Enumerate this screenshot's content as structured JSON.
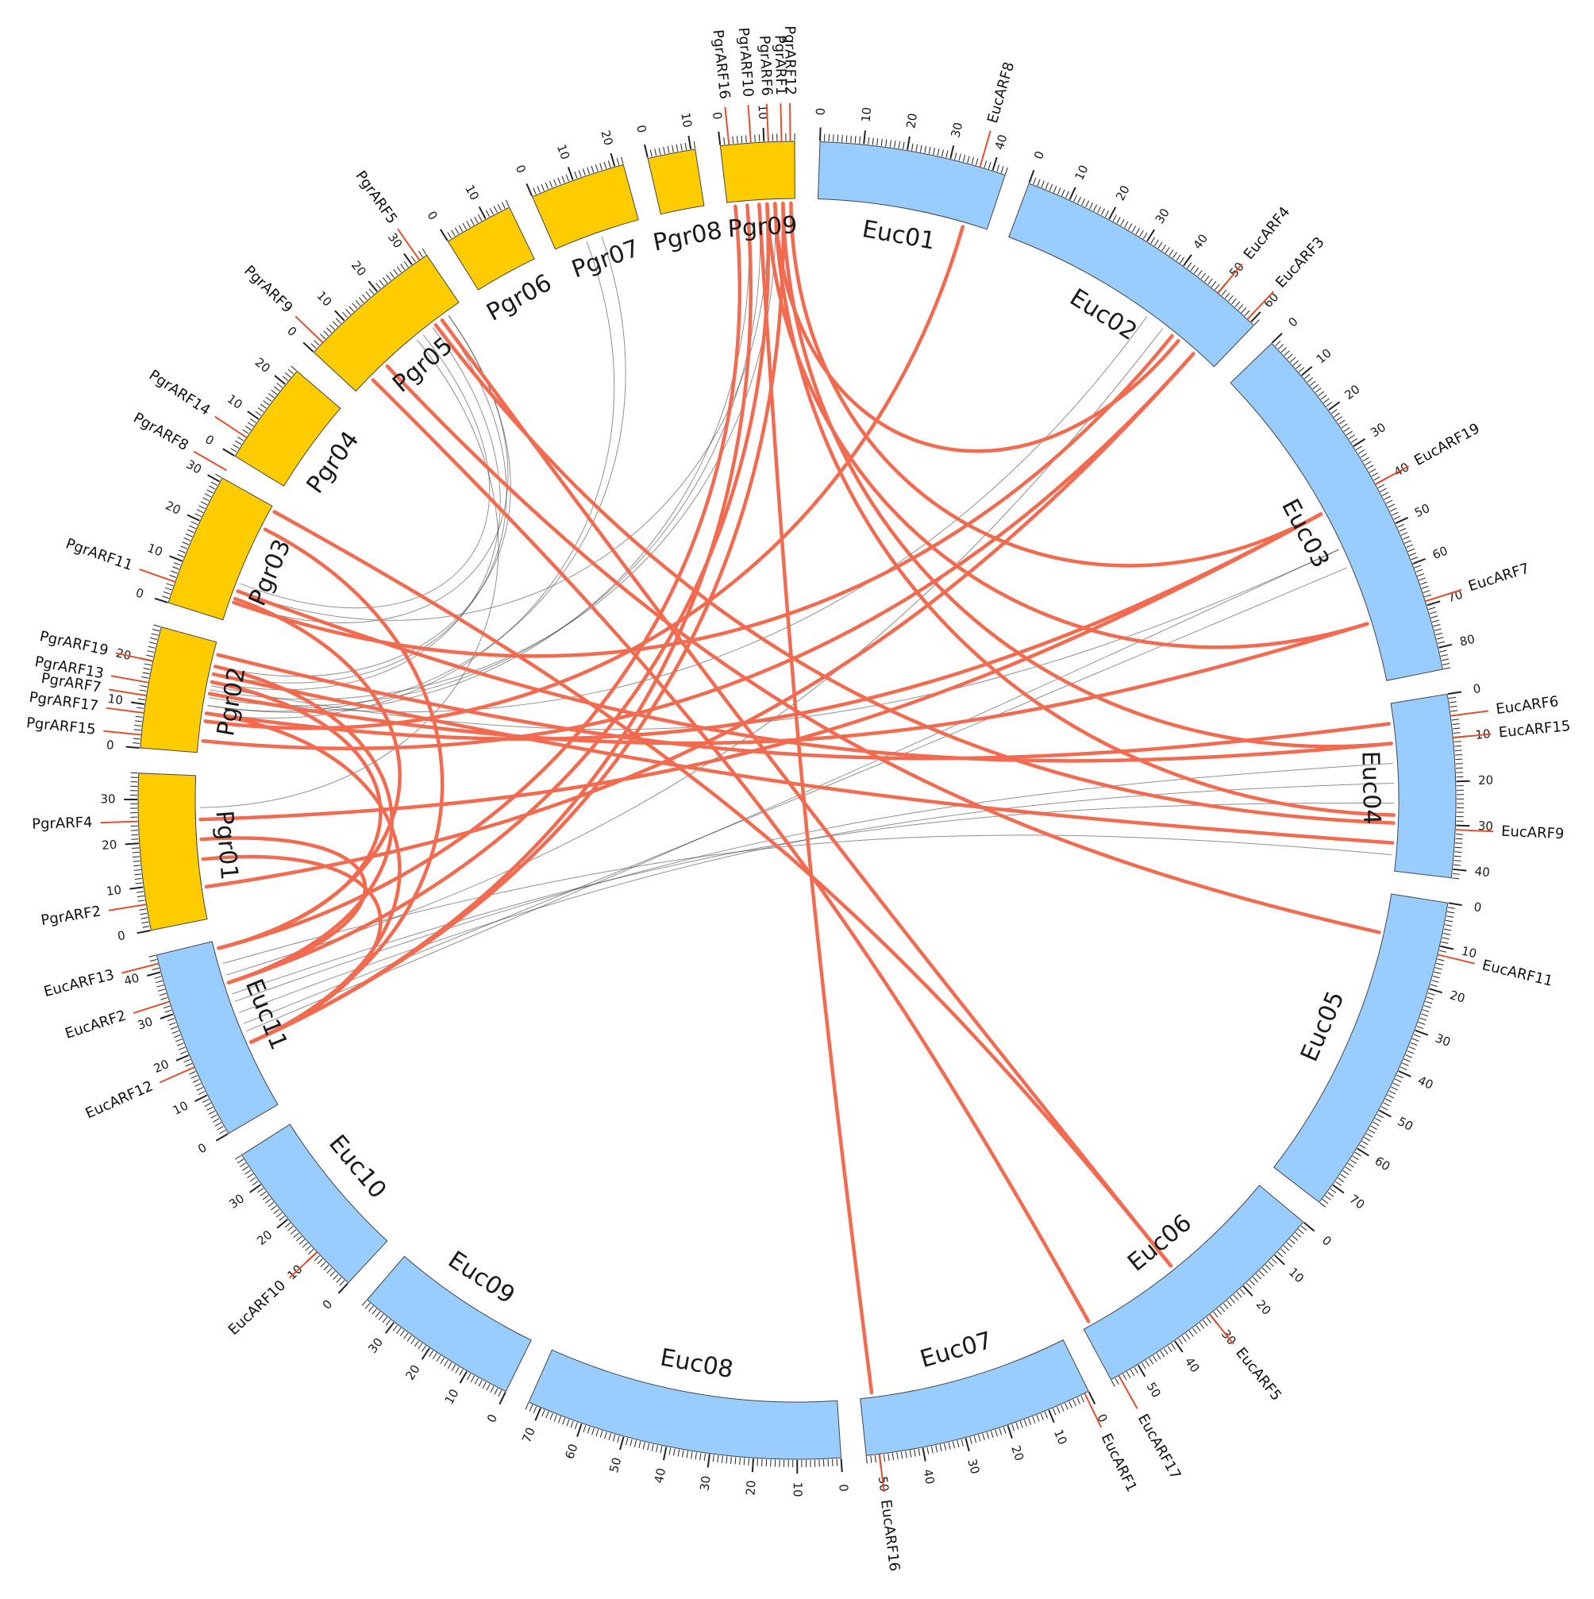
{
  "colors": {
    "euc_fill": "#99ccff",
    "pgr_fill": "#ffcc00",
    "chrom_stroke": "#444444",
    "arf_link": "#f26a4f",
    "arf_marker": "#e0502e",
    "background_link": "#333333"
  },
  "chromosomes": [
    {
      "id": "Euc01",
      "label": "Euc01",
      "species": "euc",
      "length": 43,
      "tick_step": 10
    },
    {
      "id": "Euc02",
      "label": "Euc02",
      "species": "euc",
      "length": 61,
      "tick_step": 10
    },
    {
      "id": "Euc03",
      "label": "Euc03",
      "species": "euc",
      "length": 85,
      "tick_step": 10
    },
    {
      "id": "Euc04",
      "label": "Euc04",
      "species": "euc",
      "length": 42,
      "tick_step": 10
    },
    {
      "id": "Euc05",
      "label": "Euc05",
      "species": "euc",
      "length": 75,
      "tick_step": 10
    },
    {
      "id": "Euc06",
      "label": "Euc06",
      "species": "euc",
      "length": 57,
      "tick_step": 10
    },
    {
      "id": "Euc07",
      "label": "Euc07",
      "species": "euc",
      "length": 53,
      "tick_step": 10
    },
    {
      "id": "Euc08",
      "label": "Euc08",
      "species": "euc",
      "length": 73,
      "tick_step": 10
    },
    {
      "id": "Euc09",
      "label": "Euc09",
      "species": "euc",
      "length": 38,
      "tick_step": 10
    },
    {
      "id": "Euc10",
      "label": "Euc10",
      "species": "euc",
      "length": 38,
      "tick_step": 10
    },
    {
      "id": "Euc11",
      "label": "Euc11",
      "species": "euc",
      "length": 44,
      "tick_step": 10
    },
    {
      "id": "Pgr01",
      "label": "Pgr01",
      "species": "pgr",
      "length": 36,
      "tick_step": 10
    },
    {
      "id": "Pgr02",
      "label": "Pgr02",
      "species": "pgr",
      "length": 28,
      "tick_step": 10
    },
    {
      "id": "Pgr03",
      "label": "Pgr03",
      "species": "pgr",
      "length": 31,
      "tick_step": 10
    },
    {
      "id": "Pgr04",
      "label": "Pgr04",
      "species": "pgr",
      "length": 24,
      "tick_step": 10
    },
    {
      "id": "Pgr05",
      "label": "Pgr05",
      "species": "pgr",
      "length": 34,
      "tick_step": 10
    },
    {
      "id": "Pgr06",
      "label": "Pgr06",
      "species": "pgr",
      "length": 16,
      "tick_step": 10
    },
    {
      "id": "Pgr07",
      "label": "Pgr07",
      "species": "pgr",
      "length": 22,
      "tick_step": 10
    },
    {
      "id": "Pgr08",
      "label": "Pgr08",
      "species": "pgr",
      "length": 11,
      "tick_step": 10
    },
    {
      "id": "Pgr09",
      "label": "Pgr09",
      "species": "pgr",
      "length": 17,
      "tick_step": 10
    }
  ],
  "genes": [
    {
      "name": "EucARF1",
      "chr": "Euc07",
      "pos": 1
    },
    {
      "name": "EucARF2",
      "chr": "Euc11",
      "pos": 33
    },
    {
      "name": "EucARF3",
      "chr": "Euc02",
      "pos": 59
    },
    {
      "name": "EucARF4",
      "chr": "Euc02",
      "pos": 50
    },
    {
      "name": "EucARF5",
      "chr": "Euc06",
      "pos": 30
    },
    {
      "name": "EucARF6",
      "chr": "Euc04",
      "pos": 5
    },
    {
      "name": "EucARF7",
      "chr": "Euc03",
      "pos": 69
    },
    {
      "name": "EucARF8",
      "chr": "Euc01",
      "pos": 37
    },
    {
      "name": "EucARF9",
      "chr": "Euc04",
      "pos": 31
    },
    {
      "name": "EucARF10",
      "chr": "Euc10",
      "pos": 10
    },
    {
      "name": "EucARF11",
      "chr": "Euc05",
      "pos": 12
    },
    {
      "name": "EucARF12",
      "chr": "Euc11",
      "pos": 17
    },
    {
      "name": "EucARF13",
      "chr": "Euc11",
      "pos": 42
    },
    {
      "name": "EucARF15",
      "chr": "Euc04",
      "pos": 10
    },
    {
      "name": "EucARF16",
      "chr": "Euc07",
      "pos": 50
    },
    {
      "name": "EucARF17",
      "chr": "Euc06",
      "pos": 55
    },
    {
      "name": "EucARF19",
      "chr": "Euc03",
      "pos": 40
    },
    {
      "name": "PgrARF1",
      "chr": "Pgr09",
      "pos": 14
    },
    {
      "name": "PgrARF2",
      "chr": "Pgr01",
      "pos": 6
    },
    {
      "name": "PgrARF4",
      "chr": "Pgr01",
      "pos": 25
    },
    {
      "name": "PgrARF5",
      "chr": "Pgr05",
      "pos": 32
    },
    {
      "name": "PgrARF6",
      "chr": "Pgr09",
      "pos": 11
    },
    {
      "name": "PgrARF7",
      "chr": "Pgr02",
      "pos": 12
    },
    {
      "name": "PgrARF8",
      "chr": "Pgr03",
      "pos": 33
    },
    {
      "name": "PgrARF9",
      "chr": "Pgr05",
      "pos": 3
    },
    {
      "name": "PgrARF10",
      "chr": "Pgr09",
      "pos": 7
    },
    {
      "name": "PgrARF11",
      "chr": "Pgr03",
      "pos": 5
    },
    {
      "name": "PgrARF12",
      "chr": "Pgr09",
      "pos": 16
    },
    {
      "name": "PgrARF13",
      "chr": "Pgr02",
      "pos": 15
    },
    {
      "name": "PgrARF14",
      "chr": "Pgr04",
      "pos": 5
    },
    {
      "name": "PgrARF15",
      "chr": "Pgr02",
      "pos": 3
    },
    {
      "name": "PgrARF16",
      "chr": "Pgr09",
      "pos": 2
    },
    {
      "name": "PgrARF17",
      "chr": "Pgr02",
      "pos": 8
    },
    {
      "name": "PgrARF19",
      "chr": "Pgr02",
      "pos": 20
    }
  ],
  "arf_links": [
    [
      "Euc07",
      50,
      "Pgr09",
      8
    ],
    [
      "Euc06",
      55,
      "Pgr05",
      5
    ],
    [
      "Euc06",
      30,
      "Pgr05",
      28
    ],
    [
      "Euc06",
      30,
      "Pgr03",
      30
    ],
    [
      "Euc05",
      10,
      "Pgr05",
      10
    ],
    [
      "Euc04",
      30,
      "Pgr05",
      26
    ],
    [
      "Euc04",
      35,
      "Pgr02",
      20
    ],
    [
      "Euc04",
      10,
      "Pgr03",
      8
    ],
    [
      "Euc04",
      5,
      "Pgr02",
      25
    ],
    [
      "Euc04",
      28,
      "Pgr09",
      12
    ],
    [
      "Euc04",
      10,
      "Pgr09",
      14
    ],
    [
      "Euc03",
      70,
      "Pgr02",
      15
    ],
    [
      "Euc03",
      70,
      "Pgr09",
      10
    ],
    [
      "Euc03",
      40,
      "Pgr01",
      25
    ],
    [
      "Euc03",
      40,
      "Pgr02",
      10
    ],
    [
      "Euc03",
      40,
      "Pgr09",
      16
    ],
    [
      "Euc02",
      55,
      "Pgr01",
      8
    ],
    [
      "Euc02",
      55,
      "Pgr02",
      3
    ],
    [
      "Euc02",
      50,
      "Pgr09",
      12
    ],
    [
      "Euc02",
      48,
      "Pgr03",
      5
    ],
    [
      "Euc01",
      37,
      "Pgr02",
      8
    ],
    [
      "Euc11",
      42,
      "Pgr09",
      2
    ],
    [
      "Euc11",
      42,
      "Pgr02",
      18
    ],
    [
      "Euc11",
      42,
      "Pgr03",
      6
    ],
    [
      "Euc11",
      33,
      "Pgr09",
      10
    ],
    [
      "Euc11",
      33,
      "Pgr02",
      22
    ],
    [
      "Euc11",
      33,
      "Pgr01",
      20
    ],
    [
      "Euc11",
      17,
      "Pgr09",
      14
    ],
    [
      "Euc11",
      17,
      "Pgr02",
      10
    ],
    [
      "Euc11",
      17,
      "Pgr01",
      15
    ],
    [
      "Euc11",
      17,
      "Pgr09",
      5
    ],
    [
      "Euc11",
      17,
      "Pgr03",
      25
    ]
  ],
  "background_links": [
    [
      "Euc11",
      25,
      "Euc04",
      20
    ],
    [
      "Euc11",
      28,
      "Euc04",
      15
    ],
    [
      "Euc11",
      30,
      "Euc04",
      25
    ],
    [
      "Euc11",
      20,
      "Euc03",
      50
    ],
    [
      "Euc11",
      22,
      "Euc03",
      55
    ],
    [
      "Euc11",
      35,
      "Euc02",
      45
    ],
    [
      "Euc11",
      38,
      "Euc04",
      38
    ],
    [
      "Pgr02",
      12,
      "Pgr09",
      5
    ],
    [
      "Pgr02",
      14,
      "Pgr09",
      8
    ],
    [
      "Pgr02",
      16,
      "Pgr09",
      12
    ],
    [
      "Pgr02",
      18,
      "Pgr05",
      25
    ],
    [
      "Pgr02",
      20,
      "Pgr05",
      28
    ],
    [
      "Pgr02",
      22,
      "Pgr05",
      30
    ],
    [
      "Pgr03",
      5,
      "Pgr05",
      30
    ],
    [
      "Pgr03",
      8,
      "Pgr09",
      10
    ],
    [
      "Pgr02",
      10,
      "Pgr07",
      8
    ],
    [
      "Pgr02",
      12,
      "Pgr07",
      12
    ],
    [
      "Pgr02",
      15,
      "Euc02",
      40
    ],
    [
      "Pgr02",
      17,
      "Euc03",
      50
    ],
    [
      "Pgr01",
      28,
      "Pgr05",
      20
    ],
    [
      "Pgr03",
      10,
      "Pgr05",
      22
    ]
  ]
}
